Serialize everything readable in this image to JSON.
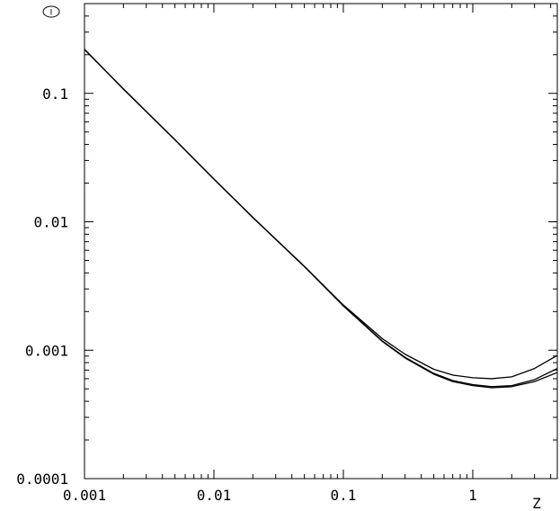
{
  "chart_data": {
    "type": "line",
    "title": "",
    "xlabel": "Z",
    "ylabel": "",
    "x_scale": "log",
    "y_scale": "log",
    "xlim": [
      0.001,
      4.5
    ],
    "ylim": [
      0.0001,
      0.5
    ],
    "grid": false,
    "marker_label": "I",
    "x_ticks": [
      {
        "value": 0.001,
        "label": "0.001"
      },
      {
        "value": 0.01,
        "label": "0.01"
      },
      {
        "value": 0.1,
        "label": "0.1"
      },
      {
        "value": 1,
        "label": "1"
      }
    ],
    "y_ticks": [
      {
        "value": 0.0001,
        "label": "0.0001"
      },
      {
        "value": 0.001,
        "label": "0.001"
      },
      {
        "value": 0.01,
        "label": "0.01"
      },
      {
        "value": 0.1,
        "label": "0.1"
      }
    ],
    "series": [
      {
        "x": [
          0.001,
          0.002,
          0.005,
          0.01,
          0.02,
          0.05,
          0.1,
          0.2,
          0.3,
          0.5,
          0.7,
          1.0,
          1.4,
          2.0,
          3.0,
          4.5
        ],
        "y": [
          0.22,
          0.108,
          0.0435,
          0.0215,
          0.0108,
          0.0045,
          0.00225,
          0.00123,
          0.00093,
          0.00071,
          0.00064,
          0.00061,
          0.0006,
          0.00062,
          0.00072,
          0.00091
        ]
      },
      {
        "x": [
          0.001,
          0.002,
          0.005,
          0.01,
          0.02,
          0.05,
          0.1,
          0.2,
          0.3,
          0.5,
          0.7,
          1.0,
          1.4,
          2.0,
          3.0,
          4.5
        ],
        "y": [
          0.22,
          0.108,
          0.0435,
          0.0215,
          0.0108,
          0.00448,
          0.00222,
          0.00118,
          0.00088,
          0.00066,
          0.00058,
          0.00054,
          0.00052,
          0.00053,
          0.00059,
          0.00072
        ]
      },
      {
        "x": [
          0.001,
          0.002,
          0.005,
          0.01,
          0.02,
          0.05,
          0.1,
          0.2,
          0.3,
          0.5,
          0.7,
          1.0,
          1.4,
          2.0,
          3.0,
          4.5
        ],
        "y": [
          0.22,
          0.108,
          0.0435,
          0.0215,
          0.0108,
          0.00447,
          0.00221,
          0.00117,
          0.00087,
          0.00065,
          0.00057,
          0.00053,
          0.00051,
          0.00052,
          0.00057,
          0.00067
        ]
      }
    ]
  }
}
